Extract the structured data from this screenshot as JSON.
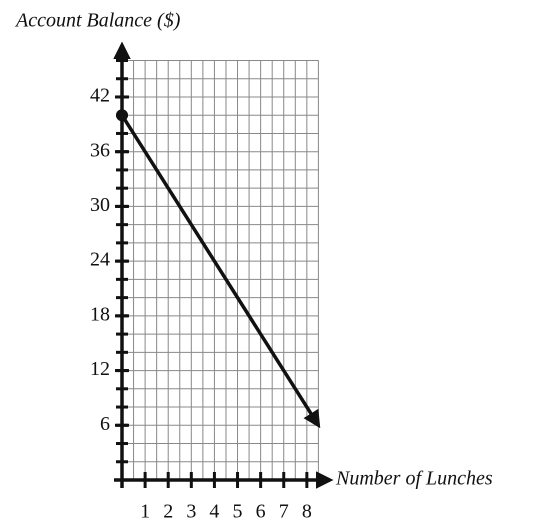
{
  "chart_data": {
    "type": "line",
    "y_label": "Account Balance ($)",
    "x_label": "Number of Lunches",
    "x": [
      0,
      8.5
    ],
    "series": [
      {
        "values": [
          40,
          6
        ],
        "color": "#111111"
      }
    ],
    "xlim": [
      0,
      8.5
    ],
    "ylim": [
      0,
      46
    ],
    "xticks": [
      1,
      2,
      3,
      4,
      5,
      6,
      7,
      8
    ],
    "yticks": [
      6,
      12,
      18,
      24,
      30,
      36,
      42
    ],
    "minor_xtick_step": 0.5,
    "minor_ytick_step": 2,
    "grid": true
  }
}
